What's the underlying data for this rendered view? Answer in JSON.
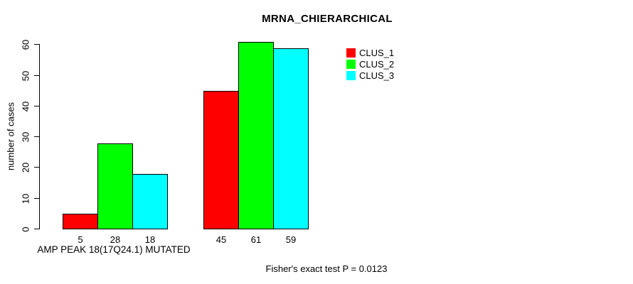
{
  "chart_data": {
    "type": "bar",
    "title": "MRNA_CHIERARCHICAL",
    "ylabel": "number of cases",
    "xlabel": "AMP PEAK 18(17Q24.1) MUTATED",
    "ylim": [
      0,
      60
    ],
    "yticks": [
      0,
      10,
      20,
      30,
      40,
      50,
      60
    ],
    "categories": [
      "AMP PEAK 18(17Q24.1) MUTATED",
      ""
    ],
    "series": [
      {
        "name": "CLUS_1",
        "color": "#ff0000",
        "values": [
          5,
          45
        ]
      },
      {
        "name": "CLUS_2",
        "color": "#00ff00",
        "values": [
          28,
          61
        ]
      },
      {
        "name": "CLUS_3",
        "color": "#00ffff",
        "values": [
          18,
          59
        ]
      }
    ],
    "legend": {
      "position": "top-right",
      "entries": [
        "CLUS_1",
        "CLUS_2",
        "CLUS_3"
      ]
    },
    "grid": false,
    "annotation": "Fisher's exact test P = 0.0123"
  }
}
